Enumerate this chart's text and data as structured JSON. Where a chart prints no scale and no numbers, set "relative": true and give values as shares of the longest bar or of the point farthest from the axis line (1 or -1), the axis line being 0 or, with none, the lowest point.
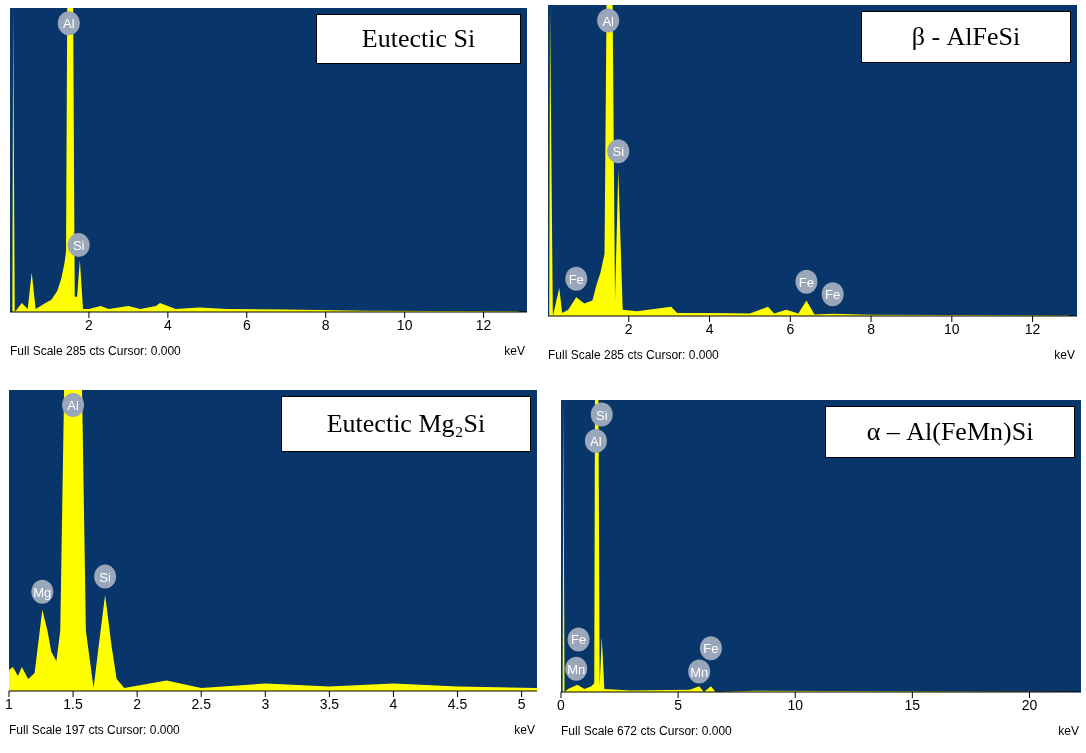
{
  "chart_data": [
    {
      "type": "area",
      "title": "Eutectic Si",
      "xlabel": "keV",
      "relative": true,
      "color": "#ffff00",
      "xlim": [
        0,
        13.1
      ],
      "xticks": [
        2,
        4,
        6,
        8,
        10,
        12
      ],
      "x": [
        0.06,
        0.08,
        0.12,
        0.3,
        0.45,
        0.55,
        0.65,
        0.9,
        1.05,
        1.2,
        1.3,
        1.38,
        1.42,
        1.45,
        1.6,
        1.64,
        1.7,
        1.77,
        1.85,
        2.0,
        2.3,
        2.5,
        3.0,
        3.3,
        3.7,
        3.8,
        4.2,
        4.8,
        5.5,
        7,
        9,
        12.9
      ],
      "values": [
        0,
        1,
        0,
        0.03,
        0.01,
        0.13,
        0.01,
        0.03,
        0.04,
        0.07,
        0.11,
        0.16,
        0.2,
        1,
        1,
        0.05,
        0.05,
        0.17,
        0.01,
        0.01,
        0.02,
        0.01,
        0.02,
        0.01,
        0.02,
        0.03,
        0.01,
        0.015,
        0.01,
        0.008,
        0.004,
        0.002
      ],
      "annotations": [
        "Full Scale 285 cts Cursor: 0.000",
        {
          "text": "Al",
          "x": 1.49,
          "y": 0.95
        },
        {
          "text": "Si",
          "x": 1.74,
          "y": 0.22
        }
      ]
    },
    {
      "type": "area",
      "title": "β - AlFeSi",
      "xlabel": "keV",
      "relative": true,
      "color": "#ffff00",
      "xlim": [
        0,
        13.1
      ],
      "xticks": [
        2,
        4,
        6,
        8,
        10,
        12
      ],
      "x": [
        0.03,
        0.05,
        0.12,
        0.28,
        0.35,
        0.5,
        0.7,
        0.9,
        1.1,
        1.2,
        1.3,
        1.4,
        1.45,
        1.6,
        1.66,
        1.74,
        1.85,
        2.2,
        3.05,
        3.2,
        4.0,
        5.0,
        5.45,
        5.6,
        5.9,
        6.2,
        6.4,
        6.6,
        7.05,
        8,
        12.9
      ],
      "values": [
        0,
        1,
        0,
        0.09,
        0.01,
        0.02,
        0.06,
        0.04,
        0.05,
        0.1,
        0.14,
        0.2,
        1,
        1,
        0.05,
        0.47,
        0.02,
        0.015,
        0.03,
        0.01,
        0.01,
        0.008,
        0.03,
        0.008,
        0.02,
        0.008,
        0.05,
        0.005,
        0.007,
        0.004,
        0.002
      ],
      "annotations": [
        "Full Scale 285 cts Cursor: 0.000",
        {
          "text": "Al",
          "x": 1.49,
          "y": 0.95
        },
        {
          "text": "Si",
          "x": 1.74,
          "y": 0.53
        },
        {
          "text": "Fe",
          "x": 0.7,
          "y": 0.12
        },
        {
          "text": "Fe",
          "x": 6.4,
          "y": 0.11
        },
        {
          "text": "Fe",
          "x": 7.05,
          "y": 0.07
        }
      ]
    },
    {
      "type": "area",
      "title": "Eutectic Mg₂Si",
      "xlabel": "keV",
      "relative": true,
      "color": "#ffff00",
      "xlim": [
        1,
        5.12
      ],
      "xticks": [
        1,
        1.5,
        2,
        2.5,
        3,
        3.5,
        4,
        4.5,
        5
      ],
      "x": [
        1.0,
        1.03,
        1.07,
        1.1,
        1.15,
        1.2,
        1.26,
        1.3,
        1.33,
        1.37,
        1.4,
        1.43,
        1.57,
        1.6,
        1.66,
        1.7,
        1.75,
        1.8,
        1.84,
        1.9,
        2.23,
        2.5,
        3.0,
        3.5,
        4.0,
        4.5,
        5.12
      ],
      "values": [
        0.07,
        0.08,
        0.05,
        0.08,
        0.04,
        0.06,
        0.27,
        0.2,
        0.13,
        0.1,
        0.2,
        1,
        1,
        0.2,
        0.01,
        0.15,
        0.32,
        0.15,
        0.04,
        0.01,
        0.035,
        0.01,
        0.025,
        0.015,
        0.025,
        0.015,
        0.01
      ],
      "annotations": [
        "Full Scale 197 cts Cursor: 0.000",
        {
          "text": "Mg",
          "x": 1.26,
          "y": 0.33
        },
        {
          "text": "Al",
          "x": 1.5,
          "y": 0.95
        },
        {
          "text": "Si",
          "x": 1.75,
          "y": 0.38
        }
      ]
    },
    {
      "type": "area",
      "title": "α – Al(FeMn)Si",
      "xlabel": "keV",
      "relative": true,
      "color": "#ffff00",
      "xlim": [
        0,
        22.2
      ],
      "xticks": [
        0,
        5,
        10,
        15,
        20
      ],
      "x": [
        0.07,
        0.1,
        0.15,
        0.3,
        0.7,
        1.0,
        1.3,
        1.42,
        1.45,
        1.6,
        1.65,
        1.74,
        1.85,
        3,
        5.5,
        5.9,
        6.1,
        6.4,
        6.6,
        8.3,
        22
      ],
      "values": [
        0,
        1,
        0,
        0.01,
        0.025,
        0.01,
        0.02,
        0.03,
        1,
        1,
        0.02,
        0.19,
        0.01,
        0.005,
        0.008,
        0.02,
        0,
        0.02,
        0,
        0.004,
        0
      ],
      "annotations": [
        "Full Scale 672 cts Cursor: 0.000",
        {
          "text": "Si",
          "x": 1.74,
          "y": 0.95
        },
        {
          "text": "Al",
          "x": 1.49,
          "y": 0.86
        },
        {
          "text": "Fe",
          "x": 0.75,
          "y": 0.18
        },
        {
          "text": "Mn",
          "x": 0.65,
          "y": 0.08
        },
        {
          "text": "Mn",
          "x": 5.9,
          "y": 0.07
        },
        {
          "text": "Fe",
          "x": 6.4,
          "y": 0.15
        }
      ]
    }
  ]
}
